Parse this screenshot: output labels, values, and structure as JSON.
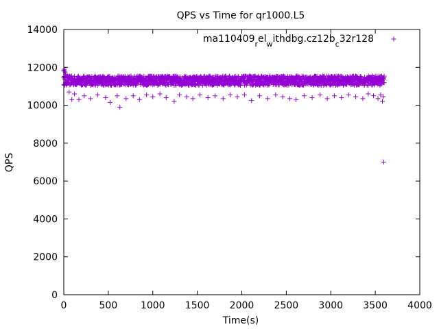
{
  "chart_data": {
    "type": "scatter",
    "title": "QPS vs Time for qr1000.L5",
    "xlabel": "Time(s)",
    "ylabel": "QPS",
    "xlim": [
      0,
      4000
    ],
    "ylim": [
      0,
      14000
    ],
    "xticks": [
      0,
      500,
      1000,
      1500,
      2000,
      2500,
      3000,
      3500,
      4000
    ],
    "yticks": [
      0,
      2000,
      4000,
      6000,
      8000,
      10000,
      12000,
      14000
    ],
    "grid": false,
    "legend_placement": "top-right",
    "legend": {
      "parts": [
        {
          "text": "ma110409",
          "shift": "none"
        },
        {
          "text": "r",
          "shift": "sub"
        },
        {
          "text": "el",
          "shift": "none"
        },
        {
          "text": "w",
          "shift": "sub"
        },
        {
          "text": "ithdbg.cz12b",
          "shift": "none"
        },
        {
          "text": "c",
          "shift": "sub"
        },
        {
          "text": "32r128",
          "shift": "none"
        }
      ]
    },
    "series": [
      {
        "color": "#9400d3",
        "marker": "plus",
        "band": {
          "x_start": 0,
          "x_end": 3600,
          "x_step": 4,
          "y_center": 11300,
          "y_spread": 250
        },
        "points": [
          {
            "x": 0,
            "y": 11850
          },
          {
            "x": 5,
            "y": 11900
          },
          {
            "x": 10,
            "y": 11800
          },
          {
            "x": 15,
            "y": 11750
          },
          {
            "x": 20,
            "y": 11650
          },
          {
            "x": 30,
            "y": 11550
          },
          {
            "x": 40,
            "y": 11450
          },
          {
            "x": 60,
            "y": 10700
          },
          {
            "x": 90,
            "y": 10300
          },
          {
            "x": 120,
            "y": 10600
          },
          {
            "x": 170,
            "y": 10300
          },
          {
            "x": 230,
            "y": 10500
          },
          {
            "x": 300,
            "y": 10350
          },
          {
            "x": 380,
            "y": 10550
          },
          {
            "x": 470,
            "y": 10400
          },
          {
            "x": 520,
            "y": 10150
          },
          {
            "x": 600,
            "y": 10500
          },
          {
            "x": 630,
            "y": 9900
          },
          {
            "x": 700,
            "y": 10350
          },
          {
            "x": 780,
            "y": 10500
          },
          {
            "x": 850,
            "y": 10300
          },
          {
            "x": 930,
            "y": 10550
          },
          {
            "x": 1000,
            "y": 10450
          },
          {
            "x": 1080,
            "y": 10600
          },
          {
            "x": 1150,
            "y": 10400
          },
          {
            "x": 1240,
            "y": 10200
          },
          {
            "x": 1300,
            "y": 10550
          },
          {
            "x": 1380,
            "y": 10450
          },
          {
            "x": 1450,
            "y": 10350
          },
          {
            "x": 1530,
            "y": 10550
          },
          {
            "x": 1620,
            "y": 10400
          },
          {
            "x": 1700,
            "y": 10500
          },
          {
            "x": 1790,
            "y": 10350
          },
          {
            "x": 1870,
            "y": 10550
          },
          {
            "x": 1950,
            "y": 10450
          },
          {
            "x": 2030,
            "y": 10550
          },
          {
            "x": 2110,
            "y": 10250
          },
          {
            "x": 2200,
            "y": 10500
          },
          {
            "x": 2290,
            "y": 10350
          },
          {
            "x": 2380,
            "y": 10550
          },
          {
            "x": 2460,
            "y": 10450
          },
          {
            "x": 2540,
            "y": 10350
          },
          {
            "x": 2610,
            "y": 10300
          },
          {
            "x": 2700,
            "y": 10500
          },
          {
            "x": 2790,
            "y": 10400
          },
          {
            "x": 2880,
            "y": 10550
          },
          {
            "x": 2960,
            "y": 10350
          },
          {
            "x": 3040,
            "y": 10500
          },
          {
            "x": 3120,
            "y": 10400
          },
          {
            "x": 3200,
            "y": 10550
          },
          {
            "x": 3280,
            "y": 10450
          },
          {
            "x": 3360,
            "y": 10350
          },
          {
            "x": 3420,
            "y": 10600
          },
          {
            "x": 3480,
            "y": 10500
          },
          {
            "x": 3530,
            "y": 10350
          },
          {
            "x": 3560,
            "y": 10550
          },
          {
            "x": 3580,
            "y": 10200
          },
          {
            "x": 3590,
            "y": 10450
          },
          {
            "x": 3595,
            "y": 7000
          }
        ]
      }
    ]
  }
}
